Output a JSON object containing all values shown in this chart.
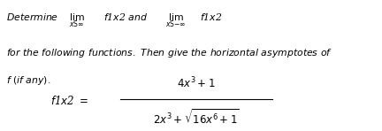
{
  "background_color": "#ffffff",
  "fig_width": 4.32,
  "fig_height": 1.48,
  "dpi": 100,
  "text_color": "#000000",
  "font_size_main": 7.8,
  "font_size_formula": 8.5
}
